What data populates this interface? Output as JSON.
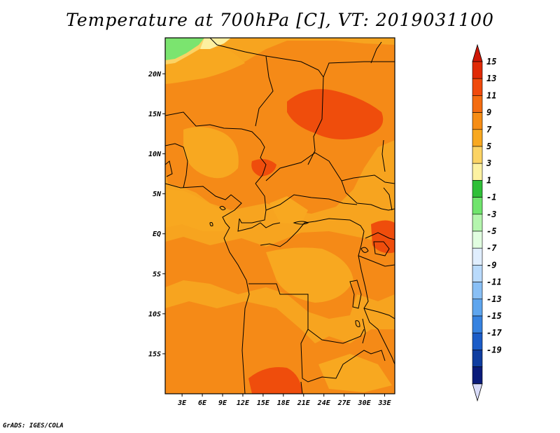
{
  "title": "Temperature at 700hPa [C], VT: 2019031100",
  "credit": "GrADS: IGES/COLA",
  "map": {
    "lat_labels": [
      "20N",
      "15N",
      "10N",
      "5N",
      "EQ",
      "5S",
      "10S",
      "15S"
    ],
    "lat_values": [
      20,
      15,
      10,
      5,
      0,
      -5,
      -10,
      -15
    ],
    "lon_labels": [
      "3E",
      "6E",
      "9E",
      "12E",
      "15E",
      "18E",
      "21E",
      "24E",
      "27E",
      "30E",
      "33E"
    ],
    "lon_values": [
      3,
      6,
      9,
      12,
      15,
      18,
      21,
      24,
      27,
      30,
      33
    ],
    "lat_range": [
      -20,
      24.5
    ],
    "lon_range": [
      0.5,
      34.5
    ]
  },
  "colorbar": {
    "labels": [
      "15",
      "13",
      "11",
      "9",
      "7",
      "5",
      "3",
      "1",
      "-1",
      "-3",
      "-5",
      "-7",
      "-9",
      "-11",
      "-13",
      "-15",
      "-17",
      "-19"
    ],
    "colors": [
      "#e02a06",
      "#f04a0c",
      "#f46c10",
      "#f68d14",
      "#f8a820",
      "#fbd364",
      "#fdf2a2",
      "#2fbf38",
      "#70e46d",
      "#b4f5ae",
      "#e1fde0",
      "#e0eefe",
      "#b9dafb",
      "#89bff5",
      "#5ea5ee",
      "#3682e0",
      "#1b5cc7",
      "#0f3da0",
      "#0a1b7a"
    ],
    "top_arrow_color": "#ce1706",
    "bottom_arrow_color": "#d9dcf9"
  }
}
